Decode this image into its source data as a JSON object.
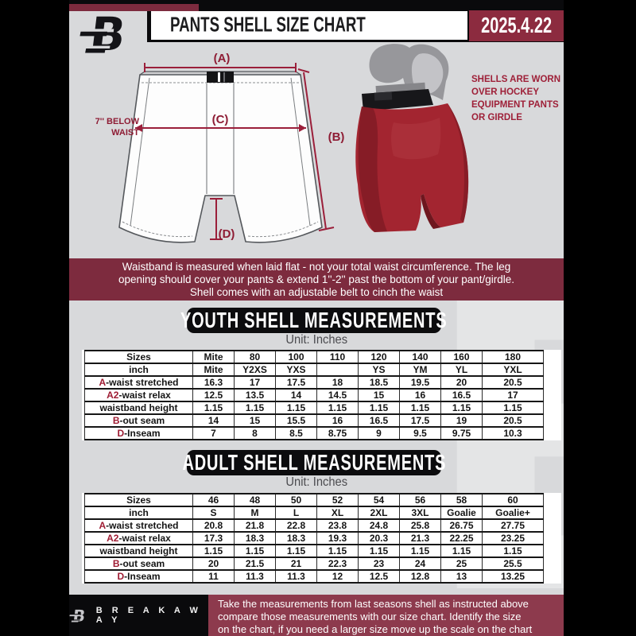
{
  "header": {
    "title": "PANTS SHELL SIZE CHART",
    "date": "2025.4.22"
  },
  "diagram": {
    "label_a": "(A)",
    "label_b": "(B)",
    "label_c": "(C)",
    "label_d": "(D)",
    "below_waist": [
      "7'' BELOW",
      "WAIST"
    ],
    "caption": [
      "SHELLS ARE WORN",
      "OVER HOCKEY",
      "EQUIPMENT PANTS",
      "OR GIRDLE"
    ]
  },
  "notice": {
    "lines": [
      "Waistband is measured when laid flat - not your total waist circumference. The leg",
      "opening should cover your pants & extend 1''-2'' past the bottom of your pant/girdle.",
      "Shell comes with an adjustable belt to cinch the waist"
    ]
  },
  "youth": {
    "title": "YOUTH SHELL MEASUREMENTS",
    "unit": "Unit: Inches",
    "table": {
      "size_row": {
        "label": "Sizes",
        "values": [
          "Mite",
          "80",
          "100",
          "110",
          "120",
          "140",
          "160",
          "180"
        ]
      },
      "inch_row": {
        "label": "inch",
        "values": [
          "Mite",
          "Y2XS",
          "YXS",
          "",
          "YS",
          "YM",
          "YL",
          "YXL"
        ]
      },
      "rows": [
        {
          "prefix": "A",
          "label": "-waist stretched",
          "values": [
            "16.3",
            "17",
            "17.5",
            "18",
            "18.5",
            "19.5",
            "20",
            "20.5"
          ]
        },
        {
          "prefix": "A2",
          "label": "-waist relax",
          "values": [
            "12.5",
            "13.5",
            "14",
            "14.5",
            "15",
            "16",
            "16.5",
            "17"
          ]
        },
        {
          "prefix": "",
          "label": "waistband height",
          "values": [
            "1.15",
            "1.15",
            "1.15",
            "1.15",
            "1.15",
            "1.15",
            "1.15",
            "1.15"
          ]
        },
        {
          "prefix": "B",
          "label": "-out seam",
          "values": [
            "14",
            "15",
            "15.5",
            "16",
            "16.5",
            "17.5",
            "19",
            "20.5"
          ]
        },
        {
          "prefix": "D",
          "label": "-Inseam",
          "values": [
            "7",
            "8",
            "8.5",
            "8.75",
            "9",
            "9.5",
            "9.75",
            "10.3"
          ]
        }
      ]
    }
  },
  "adult": {
    "title": "ADULT SHELL MEASUREMENTS",
    "unit": "Unit: Inches",
    "table": {
      "size_row": {
        "label": "Sizes",
        "values": [
          "46",
          "48",
          "50",
          "52",
          "54",
          "56",
          "58",
          "60"
        ]
      },
      "inch_row": {
        "label": "inch",
        "values": [
          "S",
          "M",
          "L",
          "XL",
          "2XL",
          "3XL",
          "Goalie",
          "Goalie+"
        ]
      },
      "rows": [
        {
          "prefix": "A",
          "label": "-waist stretched",
          "values": [
            "20.8",
            "21.8",
            "22.8",
            "23.8",
            "24.8",
            "25.8",
            "26.75",
            "27.75"
          ]
        },
        {
          "prefix": "A2",
          "label": "-waist relax",
          "values": [
            "17.3",
            "18.3",
            "18.3",
            "19.3",
            "20.3",
            "21.3",
            "22.25",
            "23.25"
          ]
        },
        {
          "prefix": "",
          "label": "waistband height",
          "values": [
            "1.15",
            "1.15",
            "1.15",
            "1.15",
            "1.15",
            "1.15",
            "1.15",
            "1.15"
          ]
        },
        {
          "prefix": "B",
          "label": "-out seam",
          "values": [
            "20",
            "21.5",
            "21",
            "22.3",
            "23",
            "24",
            "25",
            "25.5"
          ]
        },
        {
          "prefix": "D",
          "label": "-Inseam",
          "values": [
            "11",
            "11.3",
            "11.3",
            "12",
            "12.5",
            "12.8",
            "13",
            "13.25"
          ]
        }
      ]
    }
  },
  "footer": {
    "brand": "B R E A K A W A Y",
    "lines": [
      "Take the measurements from last seasons shell as instructed above",
      "compare those measurements  with our size chart. Identify the size",
      "on the chart, if you need a larger size move up the scale on the chart"
    ]
  },
  "colors": {
    "maroon_banner": "#7d2b3e",
    "date_box": "#8c2b3f",
    "footer_maroon": "#8d3a4d",
    "accent_maroon": "#9b1f3a",
    "shell_red": "#a32530",
    "panel_gray": "#d8d9db",
    "black": "#0a0a0c"
  }
}
